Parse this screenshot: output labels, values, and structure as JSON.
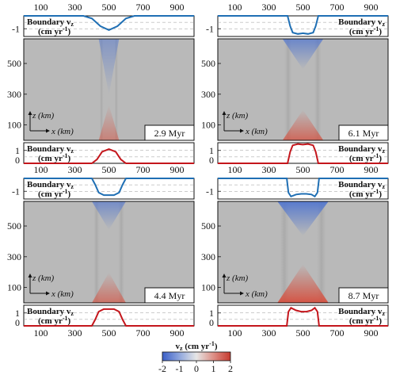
{
  "colors": {
    "blue": "#1f6fb4",
    "red": "#c4161c",
    "field": "#b9b9b9",
    "cmap_neg": "#3b5fc7",
    "cmap_zero": "#e6e6e6",
    "cmap_pos": "#c63a2f"
  },
  "labels": {
    "boundary": "Boundary v",
    "boundary_sub": "z",
    "units": "(cm yr",
    "units_sup": "-1",
    "units_close": ")",
    "z_axis": "z (km)",
    "x_axis": "x (km)"
  },
  "colorbar": {
    "label": "v",
    "label_sub": "z",
    "label_units": "(cm yr",
    "label_sup": "-1",
    "label_close": ")",
    "ticks": [
      "-2",
      "-1",
      "0",
      "1",
      "2"
    ],
    "range": [
      -2,
      2
    ]
  },
  "chart_data": [
    {
      "type": "heatmap",
      "time": "2.9 Myr",
      "x_ticks": [
        "100",
        "300",
        "500",
        "700",
        "900"
      ],
      "z_ticks": [
        "500",
        "300",
        "100"
      ],
      "xlim": [
        0,
        1000
      ],
      "zlim": [
        0,
        660
      ],
      "top_boundary": {
        "x": [
          0,
          350,
          400,
          450,
          500,
          550,
          600,
          650,
          1000
        ],
        "vz": [
          0,
          0,
          -0.2,
          -0.8,
          -1.1,
          -0.8,
          -0.2,
          0,
          0
        ],
        "ylim": [
          -1.6,
          0
        ]
      },
      "bottom_boundary": {
        "x": [
          0,
          400,
          430,
          460,
          500,
          540,
          570,
          600,
          1000
        ],
        "vz": [
          0,
          0,
          0.3,
          0.9,
          1.1,
          0.9,
          0.3,
          0,
          0
        ],
        "ylim": [
          0,
          1.6
        ]
      },
      "y_ticks_top": [
        "-1"
      ],
      "y_ticks_bottom": [
        "0",
        "1"
      ]
    },
    {
      "type": "heatmap",
      "time": "6.1 Myr",
      "x_ticks": [
        "100",
        "300",
        "500",
        "700",
        "900"
      ],
      "z_ticks": [
        "500",
        "300",
        "100"
      ],
      "xlim": [
        0,
        1000
      ],
      "zlim": [
        0,
        660
      ],
      "top_boundary": {
        "x": [
          0,
          410,
          425,
          440,
          470,
          500,
          530,
          560,
          575,
          590,
          1000
        ],
        "vz": [
          0,
          0,
          -0.8,
          -1.3,
          -1.4,
          -1.35,
          -1.4,
          -1.3,
          -0.8,
          0,
          0
        ],
        "ylim": [
          -1.6,
          0
        ]
      },
      "bottom_boundary": {
        "x": [
          0,
          410,
          425,
          440,
          470,
          500,
          530,
          560,
          575,
          590,
          1000
        ],
        "vz": [
          0,
          0,
          0.9,
          1.4,
          1.5,
          1.45,
          1.5,
          1.4,
          0.9,
          0,
          0
        ],
        "ylim": [
          0,
          1.6
        ]
      },
      "y_ticks_top": [
        "-1"
      ],
      "y_ticks_bottom": [
        "0",
        "1"
      ]
    },
    {
      "type": "heatmap",
      "time": "4.4 Myr",
      "x_ticks": [
        "100",
        "300",
        "500",
        "700",
        "900"
      ],
      "z_ticks": [
        "500",
        "300",
        "100"
      ],
      "xlim": [
        0,
        1000
      ],
      "zlim": [
        0,
        660
      ],
      "top_boundary": {
        "x": [
          0,
          400,
          420,
          440,
          470,
          500,
          530,
          560,
          580,
          600,
          1000
        ],
        "vz": [
          0,
          0,
          -0.5,
          -1.1,
          -1.3,
          -1.3,
          -1.3,
          -1.1,
          -0.5,
          0,
          0
        ],
        "ylim": [
          -1.6,
          0
        ]
      },
      "bottom_boundary": {
        "x": [
          0,
          400,
          420,
          440,
          470,
          500,
          530,
          560,
          580,
          600,
          1000
        ],
        "vz": [
          0,
          0,
          0.5,
          1.1,
          1.3,
          1.3,
          1.3,
          1.1,
          0.5,
          0,
          0
        ],
        "ylim": [
          0,
          1.6
        ]
      },
      "y_ticks_top": [
        "-1"
      ],
      "y_ticks_bottom": [
        "0",
        "1"
      ]
    },
    {
      "type": "heatmap",
      "time": "8.7 Myr",
      "x_ticks": [
        "100",
        "300",
        "500",
        "700",
        "900"
      ],
      "z_ticks": [
        "500",
        "300",
        "100"
      ],
      "xlim": [
        0,
        1000
      ],
      "zlim": [
        0,
        660
      ],
      "top_boundary": {
        "x": [
          0,
          405,
          415,
          430,
          460,
          490,
          520,
          550,
          570,
          585,
          595,
          1000
        ],
        "vz": [
          0,
          0,
          -1.1,
          -1.4,
          -1.25,
          -1.2,
          -1.2,
          -1.25,
          -1.4,
          -1.1,
          0,
          0
        ],
        "ylim": [
          -1.6,
          0
        ]
      },
      "bottom_boundary": {
        "x": [
          0,
          405,
          415,
          430,
          460,
          490,
          520,
          550,
          570,
          585,
          595,
          1000
        ],
        "vz": [
          0,
          0,
          1.1,
          1.4,
          1.2,
          1.1,
          1.1,
          1.2,
          1.4,
          1.1,
          0,
          0
        ],
        "ylim": [
          0,
          1.6
        ]
      },
      "y_ticks_top": [
        "-1"
      ],
      "y_ticks_bottom": [
        "0",
        "1"
      ]
    }
  ]
}
